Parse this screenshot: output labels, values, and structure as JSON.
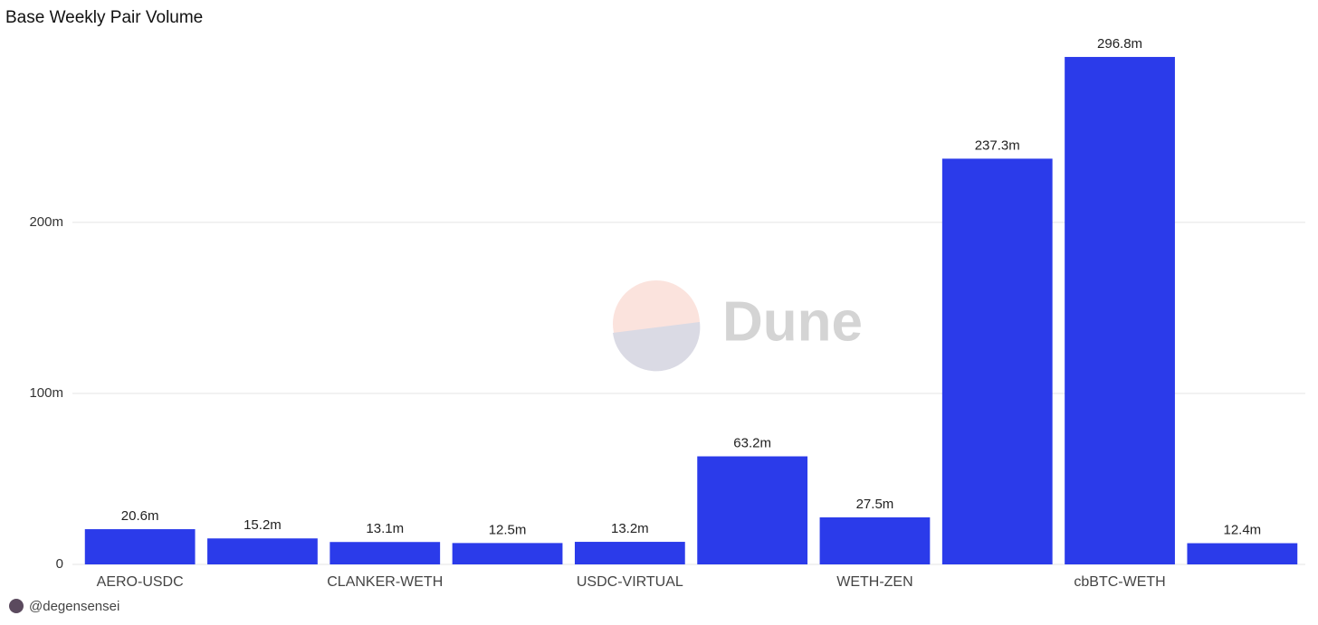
{
  "chart_data": {
    "type": "bar",
    "title": "Base Weekly Pair Volume",
    "categories": [
      "AERO-USDC",
      null,
      "CLANKER-WETH",
      null,
      "USDC-VIRTUAL",
      null,
      "WETH-ZEN",
      null,
      "cbBTC-WETH",
      null
    ],
    "values": [
      20.6,
      15.2,
      13.1,
      12.5,
      13.2,
      63.2,
      27.5,
      237.3,
      296.8,
      12.4
    ],
    "value_labels": [
      "20.6m",
      "15.2m",
      "13.1m",
      "12.5m",
      "13.2m",
      "63.2m",
      "27.5m",
      "237.3m",
      "296.8m",
      "12.4m"
    ],
    "color": "#2b3bea",
    "ylim": [
      0,
      310
    ],
    "yticks": [
      0,
      {
        "value": 100,
        "label": "100m"
      },
      {
        "value": 200,
        "label": "200m"
      }
    ],
    "grid": true,
    "watermark": "Dune",
    "author": "@degensensei"
  }
}
